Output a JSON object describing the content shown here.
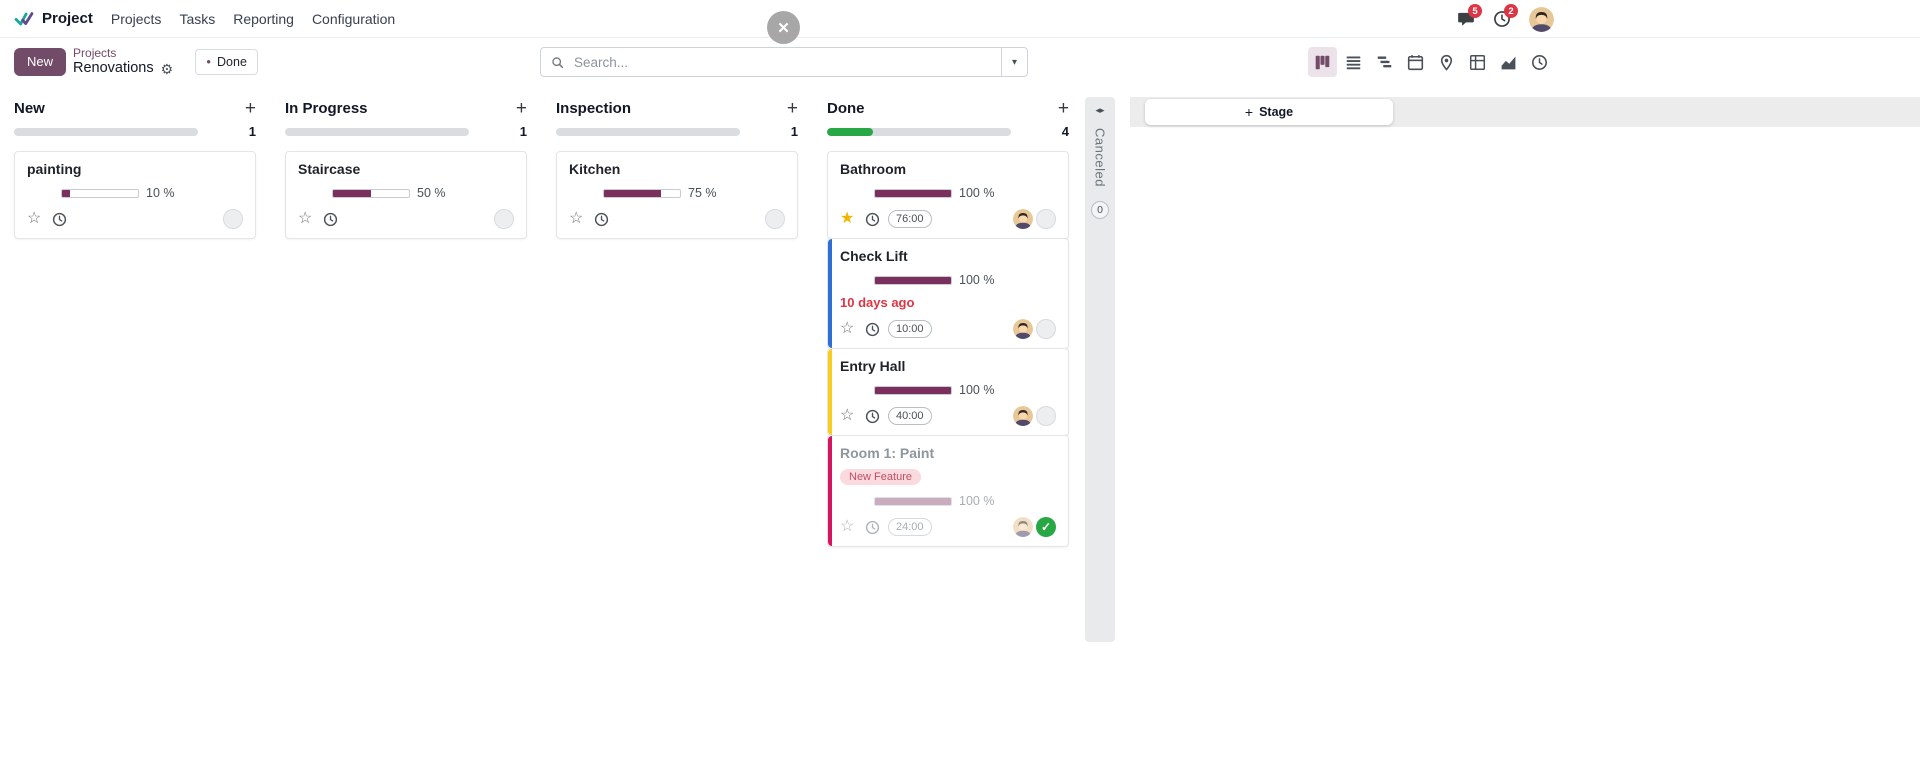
{
  "icons": {
    "plus": "+",
    "gear": "⚙",
    "caret_down": "▾",
    "dot": "●",
    "star_outline": "☆",
    "star_filled": "★",
    "unfold": "◂▸",
    "close": "✕",
    "check": "✓"
  },
  "colors": {
    "brand": "#714B67",
    "progress_fill": "#7a2f5f",
    "success": "#28a745",
    "danger": "#dc3545",
    "star": "#f1b500",
    "tag_bg": "#fbdadf",
    "tag_text": "#c04f63"
  },
  "navbar": {
    "app_name": "Project",
    "menu_items": [
      "Projects",
      "Tasks",
      "Reporting",
      "Configuration"
    ],
    "messages_badge": "5",
    "activities_badge": "2"
  },
  "control_panel": {
    "new_button_label": "New",
    "breadcrumb_parent": "Projects",
    "breadcrumb_current": "Renovations",
    "active_filter": "Done",
    "search_placeholder": "Search..."
  },
  "view_switcher": [
    "kanban",
    "list",
    "gantt",
    "calendar",
    "map",
    "pivot",
    "graph",
    "activity"
  ],
  "board": {
    "columns": [
      {
        "name": "New",
        "count": "1",
        "progress_pct": 0,
        "cards": [
          {
            "title": "painting",
            "progress_pct": 10,
            "percent_label": "10 %"
          }
        ]
      },
      {
        "name": "In Progress",
        "count": "1",
        "progress_pct": 0,
        "cards": [
          {
            "title": "Staircase",
            "progress_pct": 50,
            "percent_label": "50 %"
          }
        ]
      },
      {
        "name": "Inspection",
        "count": "1",
        "progress_pct": 0,
        "cards": [
          {
            "title": "Kitchen",
            "progress_pct": 75,
            "percent_label": "75 %"
          }
        ]
      },
      {
        "name": "Done",
        "count": "4",
        "progress_pct": 25,
        "cards": [
          {
            "title": "Bathroom",
            "progress_pct": 100,
            "percent_label": "100 %",
            "hours": "76:00",
            "starred": true
          },
          {
            "title": "Check Lift",
            "progress_pct": 100,
            "percent_label": "100 %",
            "hours": "10:00",
            "overdue": "10 days ago",
            "color_bar": "#2e6fd5"
          },
          {
            "title": "Entry Hall",
            "progress_pct": 100,
            "percent_label": "100 %",
            "hours": "40:00",
            "color_bar": "#f7cd1f"
          },
          {
            "title": "Room 1: Paint",
            "progress_pct": 100,
            "percent_label": "100 %",
            "hours": "24:00",
            "tag": "New Feature",
            "color_bar": "#d6145f",
            "done": true
          }
        ]
      }
    ],
    "folded_column": {
      "name": "Canceled",
      "count": "0"
    },
    "add_stage_label": "Stage"
  }
}
